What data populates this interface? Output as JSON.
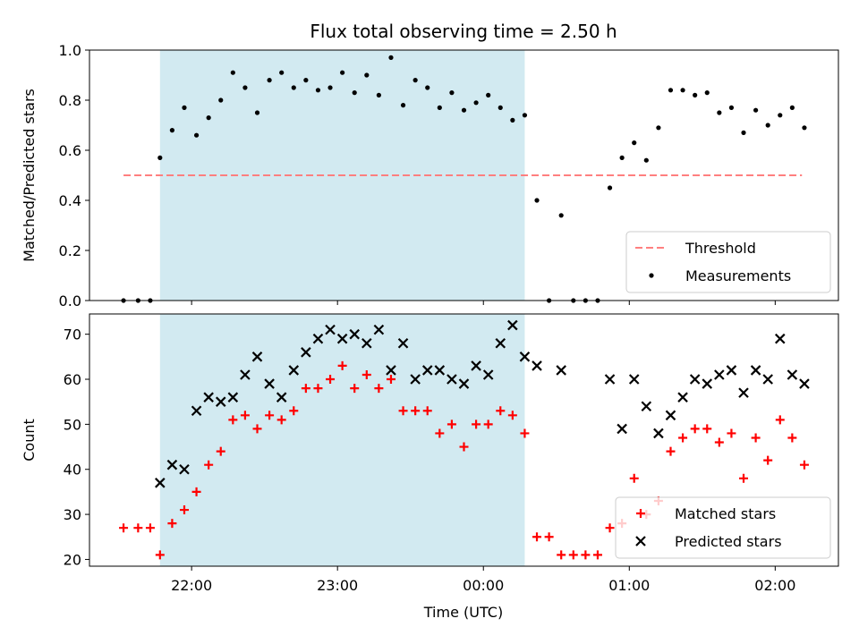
{
  "chart_data": [
    {
      "type": "scatter",
      "title": "Flux total observing time = 2.50 h",
      "xlabel": "",
      "ylabel": "Matched/Predicted stars",
      "xlim": [
        "21:18",
        "02:26"
      ],
      "ylim": [
        0,
        1.0
      ],
      "x_ticks": [
        "22:00",
        "23:00",
        "00:00",
        "01:00",
        "02:00"
      ],
      "y_ticks": [
        "0.0",
        "0.2",
        "0.4",
        "0.6",
        "0.8",
        "1.0"
      ],
      "shaded_span": {
        "start": "21:47",
        "end": "00:17",
        "color": "#add8e6"
      },
      "threshold": {
        "name": "Threshold",
        "value": 0.5,
        "x_start": "21:32",
        "x_end": "02:11",
        "color": "#ff7f7f"
      },
      "legend": {
        "position": "lower right",
        "entries": [
          "Threshold",
          "Measurements"
        ]
      },
      "series": [
        {
          "name": "Measurements",
          "color": "#000000",
          "marker": "dot",
          "points": [
            [
              "21:32",
              0
            ],
            [
              "21:38",
              0
            ],
            [
              "21:43",
              0
            ],
            [
              "21:47",
              0.57
            ],
            [
              "21:52",
              0.68
            ],
            [
              "21:57",
              0.77
            ],
            [
              "22:02",
              0.66
            ],
            [
              "22:07",
              0.73
            ],
            [
              "22:12",
              0.8
            ],
            [
              "22:17",
              0.91
            ],
            [
              "22:22",
              0.85
            ],
            [
              "22:27",
              0.75
            ],
            [
              "22:32",
              0.88
            ],
            [
              "22:37",
              0.91
            ],
            [
              "22:42",
              0.85
            ],
            [
              "22:47",
              0.88
            ],
            [
              "22:52",
              0.84
            ],
            [
              "22:57",
              0.85
            ],
            [
              "23:02",
              0.91
            ],
            [
              "23:07",
              0.83
            ],
            [
              "23:12",
              0.9
            ],
            [
              "23:17",
              0.82
            ],
            [
              "23:22",
              0.97
            ],
            [
              "23:27",
              0.78
            ],
            [
              "23:32",
              0.88
            ],
            [
              "23:37",
              0.85
            ],
            [
              "23:42",
              0.77
            ],
            [
              "23:47",
              0.83
            ],
            [
              "23:52",
              0.76
            ],
            [
              "23:57",
              0.79
            ],
            [
              "00:02",
              0.82
            ],
            [
              "00:07",
              0.77
            ],
            [
              "00:12",
              0.72
            ],
            [
              "00:17",
              0.74
            ],
            [
              "00:22",
              0.4
            ],
            [
              "00:27",
              0
            ],
            [
              "00:32",
              0.34
            ],
            [
              "00:37",
              0
            ],
            [
              "00:42",
              0
            ],
            [
              "00:47",
              0
            ],
            [
              "00:52",
              0.45
            ],
            [
              "00:57",
              0.57
            ],
            [
              "01:02",
              0.63
            ],
            [
              "01:07",
              0.56
            ],
            [
              "01:12",
              0.69
            ],
            [
              "01:17",
              0.84
            ],
            [
              "01:22",
              0.84
            ],
            [
              "01:27",
              0.82
            ],
            [
              "01:32",
              0.83
            ],
            [
              "01:37",
              0.75
            ],
            [
              "01:42",
              0.77
            ],
            [
              "01:47",
              0.67
            ],
            [
              "01:52",
              0.76
            ],
            [
              "01:57",
              0.7
            ],
            [
              "02:02",
              0.74
            ],
            [
              "02:07",
              0.77
            ],
            [
              "02:12",
              0.69
            ]
          ]
        }
      ]
    },
    {
      "type": "scatter",
      "title": "",
      "xlabel": "Time (UTC)",
      "ylabel": "Count",
      "xlim": [
        "21:18",
        "02:26"
      ],
      "ylim": [
        18.5,
        74.5
      ],
      "x_ticks": [
        "22:00",
        "23:00",
        "00:00",
        "01:00",
        "02:00"
      ],
      "y_ticks": [
        "20",
        "30",
        "40",
        "50",
        "60",
        "70"
      ],
      "shaded_span": {
        "start": "21:47",
        "end": "00:17",
        "color": "#add8e6"
      },
      "legend": {
        "position": "lower right",
        "entries": [
          "Matched stars",
          "Predicted stars"
        ]
      },
      "series": [
        {
          "name": "Matched stars",
          "color": "#ff0000",
          "marker": "plus",
          "points": [
            [
              "21:32",
              27
            ],
            [
              "21:38",
              27
            ],
            [
              "21:43",
              27
            ],
            [
              "21:47",
              21
            ],
            [
              "21:52",
              28
            ],
            [
              "21:57",
              31
            ],
            [
              "22:02",
              35
            ],
            [
              "22:07",
              41
            ],
            [
              "22:12",
              44
            ],
            [
              "22:17",
              51
            ],
            [
              "22:22",
              52
            ],
            [
              "22:27",
              49
            ],
            [
              "22:32",
              52
            ],
            [
              "22:37",
              51
            ],
            [
              "22:42",
              53
            ],
            [
              "22:47",
              58
            ],
            [
              "22:52",
              58
            ],
            [
              "22:57",
              60
            ],
            [
              "23:02",
              63
            ],
            [
              "23:07",
              58
            ],
            [
              "23:12",
              61
            ],
            [
              "23:17",
              58
            ],
            [
              "23:22",
              60
            ],
            [
              "23:27",
              53
            ],
            [
              "23:32",
              53
            ],
            [
              "23:37",
              53
            ],
            [
              "23:42",
              48
            ],
            [
              "23:47",
              50
            ],
            [
              "23:52",
              45
            ],
            [
              "23:57",
              50
            ],
            [
              "00:02",
              50
            ],
            [
              "00:07",
              53
            ],
            [
              "00:12",
              52
            ],
            [
              "00:17",
              48
            ],
            [
              "00:22",
              25
            ],
            [
              "00:27",
              25
            ],
            [
              "00:32",
              21
            ],
            [
              "00:37",
              21
            ],
            [
              "00:42",
              21
            ],
            [
              "00:47",
              21
            ],
            [
              "00:52",
              27
            ],
            [
              "00:57",
              28
            ],
            [
              "01:02",
              38
            ],
            [
              "01:07",
              30
            ],
            [
              "01:12",
              33
            ],
            [
              "01:17",
              44
            ],
            [
              "01:22",
              47
            ],
            [
              "01:27",
              49
            ],
            [
              "01:32",
              49
            ],
            [
              "01:37",
              46
            ],
            [
              "01:42",
              48
            ],
            [
              "01:47",
              38
            ],
            [
              "01:52",
              47
            ],
            [
              "01:57",
              42
            ],
            [
              "02:02",
              51
            ],
            [
              "02:07",
              47
            ],
            [
              "02:12",
              41
            ]
          ]
        },
        {
          "name": "Predicted stars",
          "color": "#000000",
          "marker": "x",
          "points": [
            [
              "21:47",
              37
            ],
            [
              "21:52",
              41
            ],
            [
              "21:57",
              40
            ],
            [
              "22:02",
              53
            ],
            [
              "22:07",
              56
            ],
            [
              "22:12",
              55
            ],
            [
              "22:17",
              56
            ],
            [
              "22:22",
              61
            ],
            [
              "22:27",
              65
            ],
            [
              "22:32",
              59
            ],
            [
              "22:37",
              56
            ],
            [
              "22:42",
              62
            ],
            [
              "22:47",
              66
            ],
            [
              "22:52",
              69
            ],
            [
              "22:57",
              71
            ],
            [
              "23:02",
              69
            ],
            [
              "23:07",
              70
            ],
            [
              "23:12",
              68
            ],
            [
              "23:17",
              71
            ],
            [
              "23:22",
              62
            ],
            [
              "23:27",
              68
            ],
            [
              "23:32",
              60
            ],
            [
              "23:37",
              62
            ],
            [
              "23:42",
              62
            ],
            [
              "23:47",
              60
            ],
            [
              "23:52",
              59
            ],
            [
              "23:57",
              63
            ],
            [
              "00:02",
              61
            ],
            [
              "00:07",
              68
            ],
            [
              "00:12",
              72
            ],
            [
              "00:17",
              65
            ],
            [
              "00:22",
              63
            ],
            [
              "00:32",
              62
            ],
            [
              "00:52",
              60
            ],
            [
              "00:57",
              49
            ],
            [
              "01:02",
              60
            ],
            [
              "01:07",
              54
            ],
            [
              "01:12",
              48
            ],
            [
              "01:17",
              52
            ],
            [
              "01:22",
              56
            ],
            [
              "01:27",
              60
            ],
            [
              "01:32",
              59
            ],
            [
              "01:37",
              61
            ],
            [
              "01:42",
              62
            ],
            [
              "01:47",
              57
            ],
            [
              "01:52",
              62
            ],
            [
              "01:57",
              60
            ],
            [
              "02:02",
              69
            ],
            [
              "02:07",
              61
            ],
            [
              "02:12",
              59
            ]
          ]
        }
      ]
    }
  ]
}
